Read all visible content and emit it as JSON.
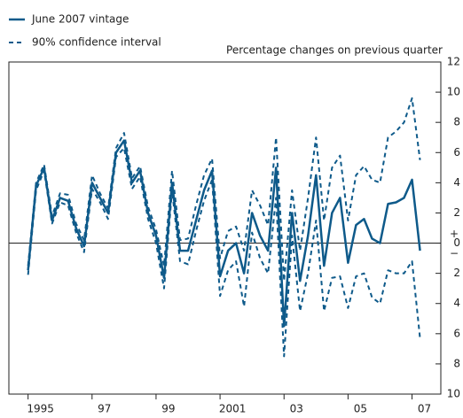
{
  "chart_data": {
    "type": "line",
    "subtitle": "Percentage changes on previous quarter",
    "x": [
      1995,
      1995.25,
      1995.5,
      1995.75,
      1996,
      1996.25,
      1996.5,
      1996.75,
      1997,
      1997.25,
      1997.5,
      1997.75,
      1998,
      1998.25,
      1998.5,
      1998.75,
      1999,
      1999.25,
      1999.5,
      1999.75,
      2000,
      2000.25,
      2000.5,
      2000.75,
      2001,
      2001.25,
      2001.5,
      2001.75,
      2002,
      2002.25,
      2002.5,
      2002.75,
      2003,
      2003.25,
      2003.5,
      2003.75,
      2004,
      2004.25,
      2004.5,
      2004.75,
      2005,
      2005.25,
      2005.5,
      2005.75,
      2006,
      2006.25,
      2006.5,
      2006.75,
      2007,
      2007.25
    ],
    "series": [
      {
        "name": "June 2007 vintage",
        "color": "#0e5a8a",
        "dash": false,
        "values": [
          -1.8,
          3.8,
          5.0,
          1.5,
          3.0,
          2.8,
          1.0,
          -0.2,
          4.0,
          3.0,
          2.0,
          6.0,
          6.8,
          4.0,
          4.8,
          2.0,
          0.5,
          -2.3,
          4.0,
          -0.5,
          -0.5,
          1.5,
          3.5,
          4.8,
          -2.2,
          -0.5,
          0,
          -2.0,
          2.0,
          0.5,
          -0.5,
          5.0,
          -5.5,
          2.0,
          -2.5,
          0.5,
          4.5,
          -1.5,
          2.0,
          3.0,
          -1.3,
          1.2,
          1.6,
          0.3,
          0,
          2.6,
          2.7,
          3.0,
          4.2,
          -0.5
        ]
      },
      {
        "name": "90% confidence interval",
        "color": "#0e5a8a",
        "dash": true,
        "values": [
          -1.5,
          4.0,
          5.2,
          1.8,
          3.3,
          3.2,
          1.3,
          0.2,
          4.5,
          3.3,
          2.3,
          6.3,
          7.3,
          4.3,
          5.1,
          2.4,
          0.9,
          -1.5,
          4.8,
          0.2,
          0.3,
          2.5,
          4.5,
          5.6,
          -1.0,
          0.8,
          1.1,
          -0.5,
          3.5,
          2.5,
          1.2,
          7.0,
          -2.5,
          3.5,
          -0.5,
          3.0,
          7.0,
          1.5,
          5.0,
          5.8,
          1.5,
          4.5,
          5.1,
          4.2,
          4.0,
          7.0,
          7.4,
          8.0,
          9.6,
          5.5
        ]
      },
      {
        "color": "#0e5a8a",
        "dash": true,
        "values": [
          -2.1,
          3.5,
          4.8,
          1.3,
          2.7,
          2.5,
          0.7,
          -0.6,
          3.6,
          2.7,
          1.6,
          5.7,
          6.3,
          3.6,
          4.4,
          1.6,
          0.0,
          -3.0,
          3.5,
          -1.2,
          -1.4,
          0.8,
          2.8,
          4.2,
          -3.5,
          -1.8,
          -1.2,
          -4.2,
          0.7,
          -1.0,
          -2.0,
          3.0,
          -7.5,
          0.5,
          -4.5,
          -2.0,
          1.5,
          -4.5,
          -2.3,
          -2.2,
          -4.3,
          -2.2,
          -2.0,
          -3.6,
          -4.0,
          -1.8,
          -2.0,
          -2.0,
          -1.2,
          -6.3
        ]
      }
    ],
    "xlim": [
      1994.4,
      2007.9
    ],
    "xticks": [
      1995,
      {
        "value": 1997,
        "label": "97"
      },
      {
        "value": 1999,
        "label": "99"
      },
      2001,
      {
        "value": 2003,
        "label": "03"
      },
      {
        "value": 2005,
        "label": "05"
      },
      {
        "value": 2007,
        "label": "07"
      }
    ],
    "ylim": [
      -10,
      12
    ],
    "yticks": [
      12,
      10,
      8,
      6,
      4,
      2,
      0,
      {
        "value": -2,
        "label": "2"
      },
      {
        "value": -4,
        "label": "4"
      },
      {
        "value": -6,
        "label": "6"
      },
      {
        "value": -8,
        "label": "8"
      },
      {
        "value": -10,
        "label": "10"
      }
    ],
    "sign_labels": [
      "+",
      "−"
    ]
  }
}
